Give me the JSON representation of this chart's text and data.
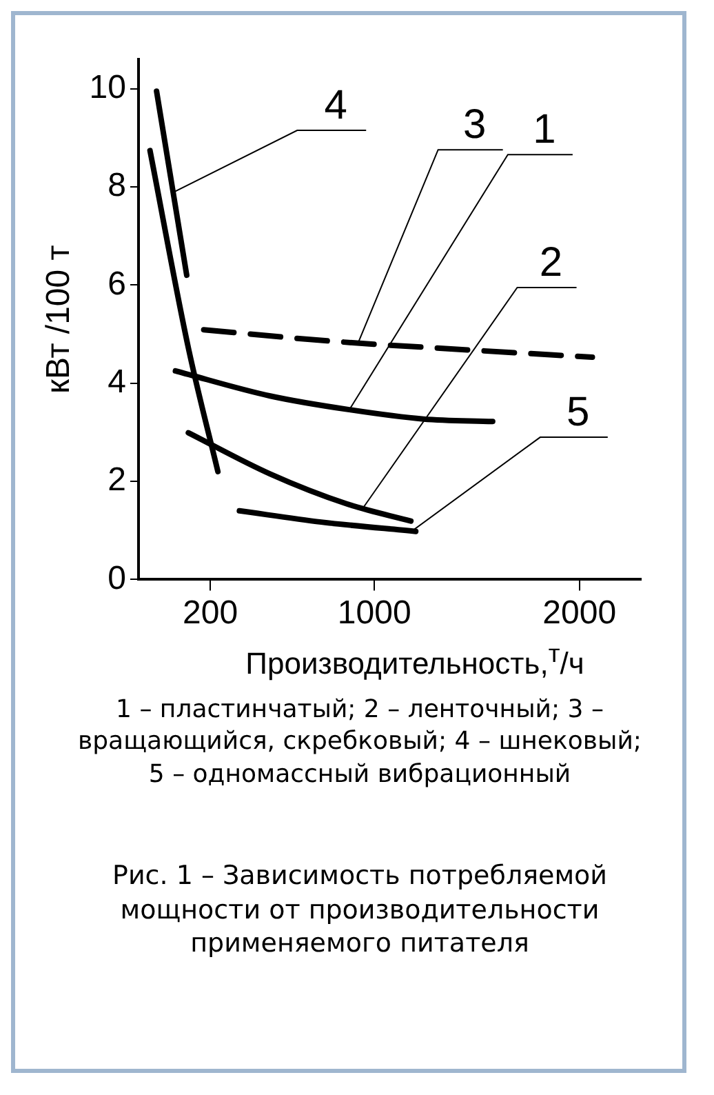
{
  "chart_data": {
    "type": "line",
    "title": "Рис. 1 – Зависимость потребляемой мощности от производительности применяемого питателя",
    "xlabel": "Производительность,$^{т}$/ч",
    "ylabel": "кВт /100 т",
    "annotations": [
      "1 – пластинчатый; 2 – ленточный; 3 – вращающийся, скребковый; 4 – шнековый; 5 – одномассный вибрационный"
    ],
    "xlim": [
      -150,
      2300
    ],
    "xticks": [
      200,
      1000,
      2000
    ],
    "ylim": [
      0,
      10.6
    ],
    "yticks": [
      0,
      2,
      4,
      6,
      8,
      10
    ],
    "grid": false,
    "legend": false,
    "marker": "none",
    "line_style": "solid",
    "series": [
      {
        "name": "4",
        "color": "#000000",
        "x": [
          -62,
          85
        ],
        "values": [
          9.95,
          6.2
        ]
      },
      {
        "color": "#000000",
        "x": [
          -94,
          93,
          237
        ],
        "values": [
          8.74,
          4.72,
          2.2
        ]
      },
      {
        "name": "3",
        "color": "#000000",
        "line_style": "dashed",
        "x": [
          168,
          779,
          1489,
          2063
        ],
        "values": [
          5.09,
          4.86,
          4.67,
          4.53
        ]
      },
      {
        "name": "1",
        "color": "#000000",
        "x": [
          30,
          492,
          878,
          1240,
          1577
        ],
        "values": [
          4.25,
          3.74,
          3.46,
          3.27,
          3.22
        ]
      },
      {
        "name": "2",
        "color": "#000000",
        "x": [
          93,
          492,
          866,
          1178
        ],
        "values": [
          2.99,
          2.15,
          1.54,
          1.19
        ]
      },
      {
        "name": "5",
        "color": "#000000",
        "x": [
          342,
          741,
          1202
        ],
        "values": [
          1.4,
          1.17,
          0.98
        ]
      }
    ]
  }
}
